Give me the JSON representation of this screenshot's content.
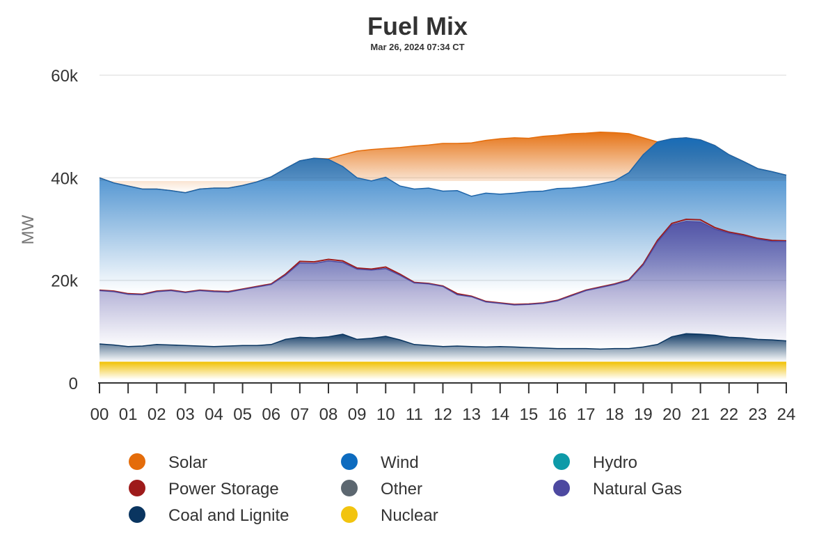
{
  "chart_data": {
    "type": "area",
    "title": "Fuel Mix",
    "subtitle": "Mar 26, 2024 07:34 CT",
    "ylabel": "MW",
    "xlabel": "",
    "ylim": [
      0,
      60000
    ],
    "yticks": [
      0,
      20000,
      40000,
      60000
    ],
    "ytick_labels": [
      "0",
      "20k",
      "40k",
      "60k"
    ],
    "xlim": [
      0,
      24
    ],
    "xtick_labels": [
      "00",
      "01",
      "02",
      "03",
      "04",
      "05",
      "06",
      "07",
      "08",
      "09",
      "10",
      "11",
      "12",
      "13",
      "14",
      "15",
      "16",
      "17",
      "18",
      "19",
      "20",
      "21",
      "22",
      "23",
      "24"
    ],
    "grid": true,
    "x_hours": [
      0,
      0.5,
      1,
      1.5,
      2,
      2.5,
      3,
      3.5,
      4,
      4.5,
      5,
      5.5,
      6,
      6.5,
      7,
      7.5,
      8,
      8.5,
      9,
      9.5,
      10,
      10.5,
      11,
      11.5,
      12,
      12.5,
      13,
      13.5,
      14,
      14.5,
      15,
      15.5,
      16,
      16.5,
      17,
      17.5,
      18,
      18.5,
      19,
      19.5,
      20,
      20.5,
      21,
      21.5,
      22,
      22.5,
      23,
      23.5,
      24
    ],
    "series": [
      {
        "name": "Nuclear",
        "color": "#f2c40f",
        "values": [
          4000,
          4000,
          4000,
          4000,
          4000,
          4000,
          4000,
          4000,
          4000,
          4000,
          4000,
          4000,
          4000,
          4000,
          4000,
          4000,
          4000,
          4000,
          4000,
          4000,
          4000,
          4000,
          4000,
          4000,
          4000,
          4000,
          4000,
          4000,
          4000,
          4000,
          4000,
          4000,
          4000,
          4000,
          4000,
          4000,
          4000,
          4000,
          4000,
          4000,
          4000,
          4000,
          4000,
          4000,
          4000,
          4000,
          4000,
          4000,
          4000
        ]
      },
      {
        "name": "Coal and Lignite",
        "color": "#0a3560",
        "values": [
          7600,
          7400,
          7100,
          7200,
          7500,
          7400,
          7300,
          7200,
          7100,
          7200,
          7300,
          7300,
          7500,
          8500,
          8900,
          8800,
          9000,
          9500,
          8500,
          8700,
          9100,
          8400,
          7500,
          7300,
          7100,
          7200,
          7100,
          7000,
          7100,
          7000,
          6900,
          6800,
          6700,
          6700,
          6700,
          6600,
          6700,
          6700,
          7000,
          7500,
          9000,
          9600,
          9500,
          9300,
          8900,
          8800,
          8500,
          8400,
          8200
        ]
      },
      {
        "name": "Natural Gas",
        "color": "#4d49a0",
        "values": [
          18000,
          17800,
          17300,
          17200,
          17800,
          18000,
          17600,
          18000,
          17800,
          17700,
          18200,
          18700,
          19200,
          21000,
          23400,
          23300,
          23800,
          23500,
          22200,
          22000,
          22300,
          21000,
          19500,
          19300,
          18800,
          17200,
          16800,
          15800,
          15500,
          15200,
          15300,
          15500,
          16000,
          17000,
          18000,
          18600,
          19200,
          20000,
          23000,
          27500,
          30800,
          31500,
          31400,
          30000,
          29200,
          28700,
          28000,
          27600,
          27600
        ]
      },
      {
        "name": "Power Storage",
        "color": "#9e1b1b",
        "values": [
          100,
          100,
          100,
          100,
          100,
          100,
          100,
          100,
          100,
          100,
          100,
          100,
          100,
          200,
          300,
          300,
          300,
          300,
          200,
          200,
          300,
          200,
          100,
          100,
          100,
          200,
          100,
          100,
          100,
          100,
          100,
          100,
          100,
          100,
          100,
          100,
          100,
          100,
          200,
          300,
          300,
          400,
          400,
          300,
          200,
          200,
          200,
          200,
          100
        ]
      },
      {
        "name": "Wind",
        "color": "#0d6bbf",
        "values": [
          40000,
          39000,
          38400,
          37800,
          37800,
          37500,
          37100,
          37800,
          38000,
          38000,
          38500,
          39200,
          40200,
          41800,
          43300,
          43800,
          43600,
          42200,
          40000,
          39400,
          40100,
          38400,
          37800,
          38000,
          37400,
          37500,
          36400,
          37000,
          36800,
          37000,
          37300,
          37400,
          37900,
          38000,
          38300,
          38800,
          39400,
          41000,
          44500,
          47000,
          47600,
          47800,
          47400,
          46300,
          44500,
          43200,
          41800,
          41200,
          40500
        ]
      },
      {
        "name": "Solar",
        "color": "#e46c0a",
        "values": [
          40000,
          39000,
          38400,
          37800,
          37800,
          37500,
          37100,
          37800,
          38000,
          38000,
          38500,
          39200,
          40200,
          41800,
          43300,
          43800,
          43700,
          44500,
          45200,
          45500,
          45700,
          45900,
          46200,
          46400,
          46700,
          46700,
          46800,
          47300,
          47600,
          47800,
          47700,
          48100,
          48300,
          48600,
          48700,
          48900,
          48800,
          48600,
          47800,
          47000,
          47600,
          47800,
          47400,
          46300,
          44500,
          43200,
          41800,
          41200,
          40500
        ]
      },
      {
        "name": "Hydro",
        "color": "#0e9aa8",
        "values": []
      },
      {
        "name": "Other",
        "color": "#5c6770",
        "values": []
      }
    ],
    "legend": {
      "placement": "bottom",
      "rows": [
        [
          {
            "label": "Solar",
            "color": "#e46c0a"
          },
          {
            "label": "Wind",
            "color": "#0d6bbf"
          },
          {
            "label": "Hydro",
            "color": "#0e9aa8"
          }
        ],
        [
          {
            "label": "Power Storage",
            "color": "#9e1b1b"
          },
          {
            "label": "Other",
            "color": "#5c6770"
          },
          {
            "label": "Natural Gas",
            "color": "#4d49a0"
          }
        ],
        [
          {
            "label": "Coal and Lignite",
            "color": "#0a3560"
          },
          {
            "label": "Nuclear",
            "color": "#f2c40f"
          }
        ]
      ]
    }
  }
}
